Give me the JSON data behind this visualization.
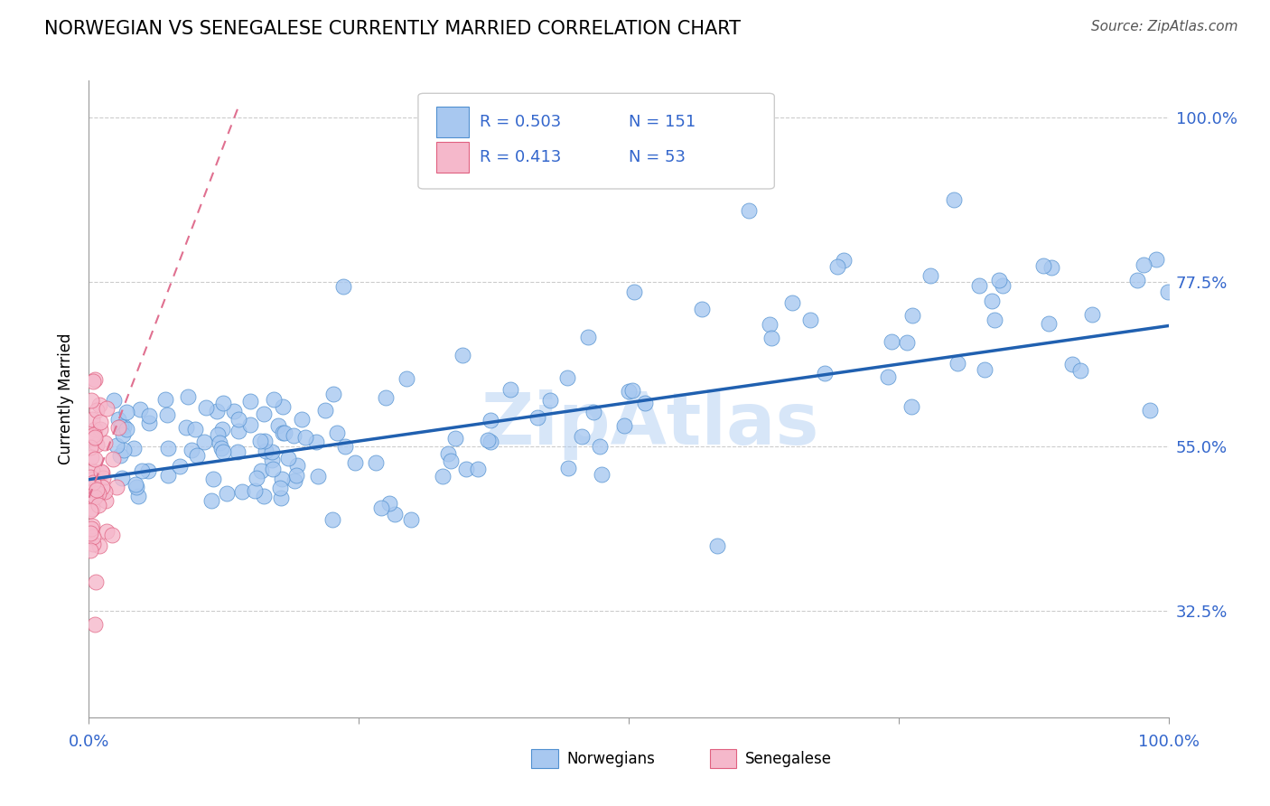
{
  "title": "NORWEGIAN VS SENEGALESE CURRENTLY MARRIED CORRELATION CHART",
  "source": "Source: ZipAtlas.com",
  "ylabel": "Currently Married",
  "xlim": [
    0,
    1.0
  ],
  "ylim": [
    0.18,
    1.05
  ],
  "yticks": [
    0.325,
    0.55,
    0.775,
    1.0
  ],
  "ytick_labels": [
    "32.5%",
    "55.0%",
    "77.5%",
    "100.0%"
  ],
  "legend_r1": "R = 0.503",
  "legend_n1": "N = 151",
  "legend_r2": "R = 0.413",
  "legend_n2": "N = 53",
  "blue_dot": "#a8c8f0",
  "blue_edge": "#5090d0",
  "pink_dot": "#f5b8cb",
  "pink_edge": "#e06080",
  "blue_line": "#2060b0",
  "pink_line": "#e07090",
  "watermark": "ZipAtlas",
  "nor_trend_x0": 0.0,
  "nor_trend_x1": 1.0,
  "nor_trend_y0": 0.505,
  "nor_trend_y1": 0.715,
  "sen_trend_x0": 0.0,
  "sen_trend_x1": 0.055,
  "sen_trend_y0": 0.5,
  "sen_trend_y1": 0.72
}
